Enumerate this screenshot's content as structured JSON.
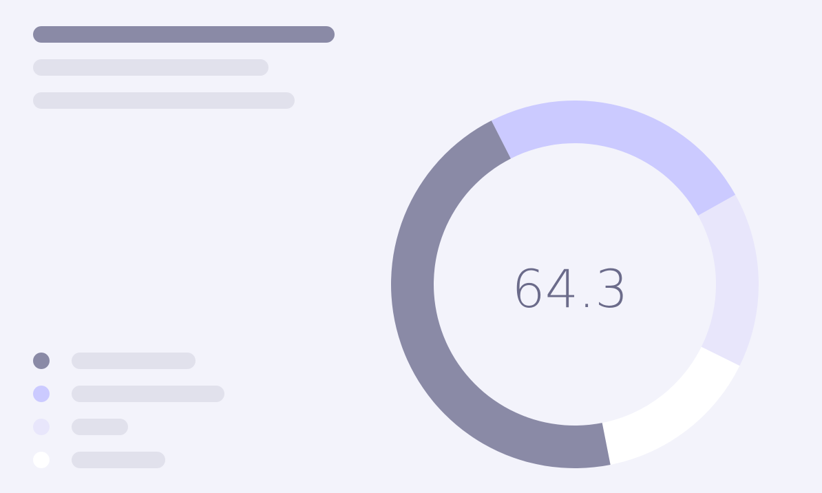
{
  "colors": {
    "background": "#f3f3fb",
    "title_bar": "#8a8aa6",
    "placeholder_bar": "#e1e1ec",
    "center_text": "#6b6b8a"
  },
  "placeholders": {
    "title_width": 438,
    "subtitle_widths": [
      342,
      380
    ]
  },
  "chart_data": {
    "type": "pie",
    "variant": "donut",
    "center_value": "64.3",
    "legend_position": "left",
    "slices": [
      {
        "value": 24.4,
        "color": "#cbcaff",
        "label_width": 222
      },
      {
        "value": 15.4,
        "color": "#e8e6fb",
        "label_width": 82
      },
      {
        "value": 14.6,
        "color": "#ffffff",
        "label_width": 136
      },
      {
        "value": 45.6,
        "color": "#8a8aa6",
        "label_width": 180
      }
    ],
    "legend_order": [
      3,
      0,
      1,
      2
    ]
  }
}
